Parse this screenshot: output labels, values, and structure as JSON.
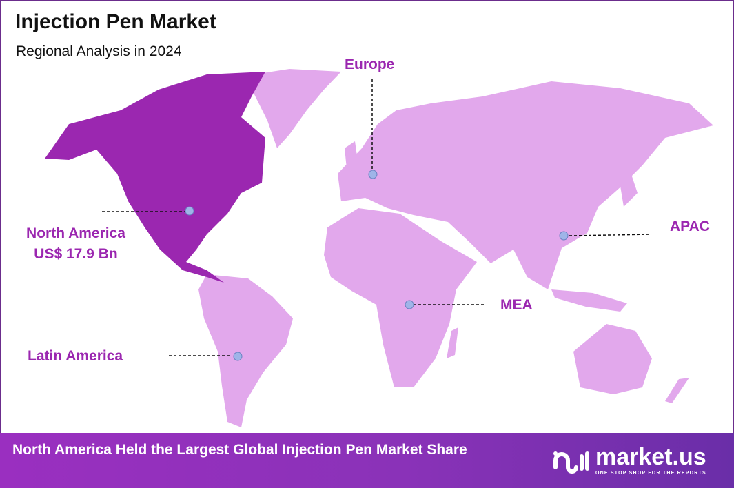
{
  "header": {
    "title": "Injection Pen Market",
    "subtitle": "Regional Analysis in 2024"
  },
  "colors": {
    "highlight_region": "#9b27b0",
    "other_regions": "#e2a8ec",
    "label": "#9b27b0",
    "marker": "#9fb4e8"
  },
  "regions": [
    {
      "name": "North America",
      "value": "US$ 17.9 Bn",
      "highlighted": true
    },
    {
      "name": "Europe",
      "highlighted": false
    },
    {
      "name": "APAC",
      "highlighted": false
    },
    {
      "name": "MEA",
      "highlighted": false
    },
    {
      "name": "Latin America",
      "highlighted": false
    }
  ],
  "footer": {
    "text": "North America Held the Largest Global Injection Pen Market Share",
    "logo_name": "market.us",
    "logo_tagline": "ONE STOP SHOP FOR THE REPORTS"
  }
}
